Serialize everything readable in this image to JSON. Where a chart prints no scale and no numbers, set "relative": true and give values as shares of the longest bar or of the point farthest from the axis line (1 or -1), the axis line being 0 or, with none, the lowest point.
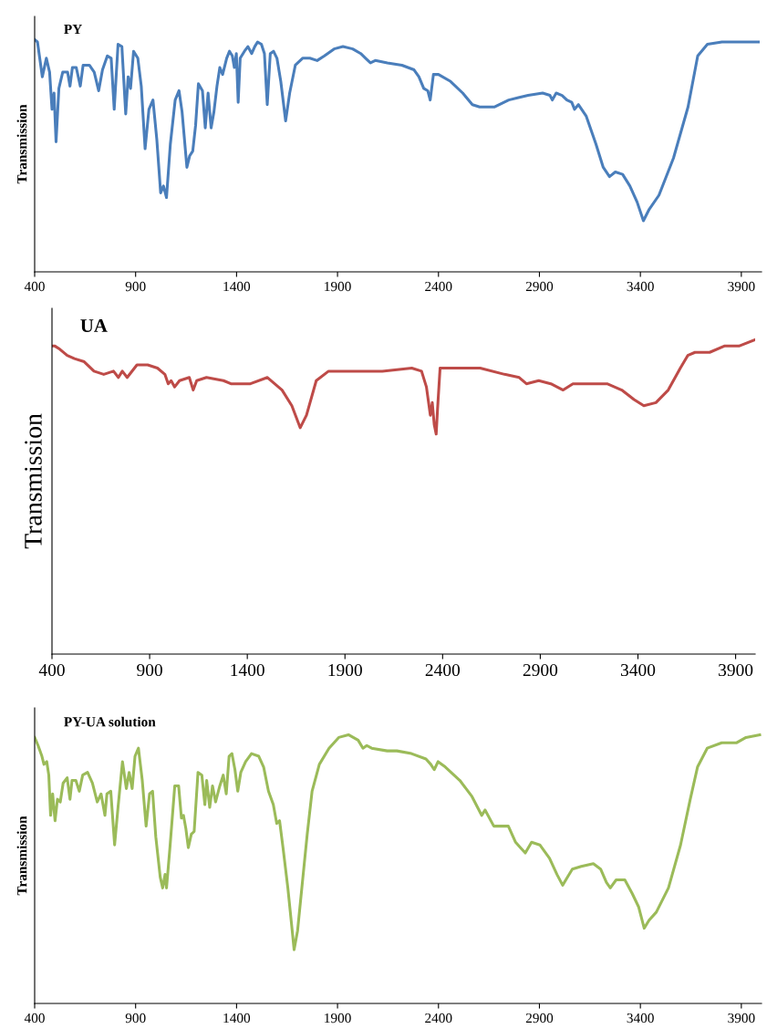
{
  "chart_data": [
    {
      "type": "line",
      "title": "PY",
      "ylabel": "Transmission",
      "relative": true,
      "xlim": [
        400,
        4000
      ],
      "xticks": [
        400,
        900,
        1400,
        1900,
        2400,
        2900,
        3400,
        3900
      ],
      "tick_labels": "x",
      "grid": false,
      "legend": false,
      "series": [
        {
          "color": "#4a7ebb",
          "x": [
            400,
            414,
            438,
            458,
            474,
            486,
            496,
            506,
            520,
            539,
            563,
            575,
            587,
            606,
            626,
            640,
            671,
            695,
            717,
            736,
            760,
            779,
            794,
            813,
            832,
            851,
            863,
            875,
            890,
            911,
            928,
            947,
            966,
            986,
            1005,
            1024,
            1038,
            1053,
            1072,
            1096,
            1115,
            1130,
            1154,
            1168,
            1183,
            1197,
            1211,
            1231,
            1245,
            1259,
            1274,
            1288,
            1303,
            1317,
            1331,
            1351,
            1365,
            1379,
            1389,
            1399,
            1408,
            1418,
            1439,
            1456,
            1475,
            1490,
            1504,
            1523,
            1538,
            1552,
            1567,
            1583,
            1600,
            1619,
            1643,
            1663,
            1691,
            1727,
            1763,
            1799,
            1835,
            1883,
            1927,
            1975,
            2015,
            2039,
            2063,
            2087,
            2147,
            2219,
            2279,
            2303,
            2327,
            2347,
            2359,
            2375,
            2400,
            2460,
            2520,
            2568,
            2604,
            2676,
            2748,
            2796,
            2844,
            2916,
            2952,
            2964,
            2983,
            3012,
            3036,
            3060,
            3074,
            3093,
            3132,
            3180,
            3216,
            3247,
            3276,
            3312,
            3348,
            3384,
            3415,
            3444,
            3492,
            3564,
            3636,
            3684,
            3732,
            3804,
            3900,
            3984
          ],
          "values": [
            1.0,
            0.99,
            0.84,
            0.92,
            0.86,
            0.7,
            0.77,
            0.56,
            0.79,
            0.86,
            0.86,
            0.8,
            0.88,
            0.88,
            0.8,
            0.89,
            0.89,
            0.86,
            0.78,
            0.87,
            0.93,
            0.92,
            0.7,
            0.98,
            0.97,
            0.68,
            0.84,
            0.79,
            0.95,
            0.92,
            0.8,
            0.53,
            0.7,
            0.74,
            0.57,
            0.34,
            0.37,
            0.32,
            0.55,
            0.74,
            0.78,
            0.69,
            0.45,
            0.5,
            0.52,
            0.63,
            0.81,
            0.78,
            0.62,
            0.77,
            0.62,
            0.69,
            0.8,
            0.88,
            0.85,
            0.92,
            0.95,
            0.93,
            0.88,
            0.94,
            0.73,
            0.92,
            0.95,
            0.97,
            0.94,
            0.97,
            0.99,
            0.98,
            0.94,
            0.72,
            0.94,
            0.95,
            0.92,
            0.82,
            0.65,
            0.77,
            0.89,
            0.92,
            0.92,
            0.91,
            0.93,
            0.96,
            0.97,
            0.96,
            0.94,
            0.92,
            0.9,
            0.91,
            0.9,
            0.89,
            0.87,
            0.84,
            0.79,
            0.78,
            0.74,
            0.85,
            0.85,
            0.82,
            0.77,
            0.72,
            0.71,
            0.71,
            0.74,
            0.75,
            0.76,
            0.77,
            0.76,
            0.74,
            0.77,
            0.76,
            0.74,
            0.73,
            0.7,
            0.72,
            0.67,
            0.55,
            0.45,
            0.41,
            0.43,
            0.42,
            0.37,
            0.3,
            0.22,
            0.27,
            0.33,
            0.49,
            0.71,
            0.93,
            0.98,
            0.99,
            0.99,
            0.99
          ]
        }
      ]
    },
    {
      "type": "line",
      "title": "UA",
      "ylabel": "Transmission",
      "relative": true,
      "xlim": [
        400,
        4000
      ],
      "xticks": [
        400,
        900,
        1400,
        1900,
        2400,
        2900,
        3400,
        3900
      ],
      "tick_labels": "x",
      "grid": false,
      "legend": false,
      "series": [
        {
          "color": "#be4b48",
          "x": [
            400,
            415,
            440,
            478,
            515,
            565,
            615,
            665,
            715,
            740,
            760,
            785,
            835,
            890,
            940,
            978,
            995,
            1010,
            1028,
            1053,
            1103,
            1123,
            1141,
            1191,
            1278,
            1316,
            1416,
            1503,
            1578,
            1628,
            1671,
            1703,
            1753,
            1816,
            1941,
            2091,
            2242,
            2292,
            2317,
            2337,
            2347,
            2357,
            2367,
            2374,
            2387,
            2467,
            2592,
            2717,
            2792,
            2829,
            2892,
            2954,
            3017,
            3067,
            3242,
            3317,
            3380,
            3430,
            3492,
            3555,
            3617,
            3655,
            3692,
            3767,
            3842,
            3917,
            4000
          ],
          "values": [
            0.98,
            0.98,
            0.97,
            0.95,
            0.94,
            0.93,
            0.9,
            0.89,
            0.9,
            0.88,
            0.9,
            0.88,
            0.92,
            0.92,
            0.91,
            0.89,
            0.86,
            0.87,
            0.85,
            0.87,
            0.88,
            0.84,
            0.87,
            0.88,
            0.87,
            0.86,
            0.86,
            0.88,
            0.84,
            0.79,
            0.72,
            0.76,
            0.87,
            0.9,
            0.9,
            0.9,
            0.91,
            0.9,
            0.85,
            0.76,
            0.8,
            0.73,
            0.7,
            0.78,
            0.91,
            0.91,
            0.91,
            0.89,
            0.88,
            0.86,
            0.87,
            0.86,
            0.84,
            0.86,
            0.86,
            0.84,
            0.81,
            0.79,
            0.8,
            0.84,
            0.91,
            0.95,
            0.96,
            0.96,
            0.98,
            0.98,
            1.0
          ]
        }
      ]
    },
    {
      "type": "line",
      "title": "PY-UA solution",
      "ylabel": "Transmission",
      "relative": true,
      "xlim": [
        400,
        4000
      ],
      "xticks": [
        400,
        900,
        1400,
        1900,
        2400,
        2900,
        3400,
        3900
      ],
      "tick_labels": "x",
      "grid": false,
      "legend": false,
      "series": [
        {
          "color": "#9bbb59",
          "x": [
            400,
            417,
            436,
            446,
            460,
            470,
            479,
            489,
            501,
            513,
            527,
            541,
            561,
            575,
            585,
            604,
            621,
            638,
            662,
            686,
            710,
            729,
            748,
            758,
            777,
            796,
            813,
            835,
            854,
            868,
            883,
            897,
            914,
            933,
            952,
            969,
            984,
            1000,
            1022,
            1034,
            1046,
            1053,
            1070,
            1094,
            1113,
            1127,
            1137,
            1149,
            1161,
            1176,
            1190,
            1209,
            1228,
            1243,
            1252,
            1267,
            1281,
            1296,
            1317,
            1334,
            1349,
            1363,
            1377,
            1392,
            1406,
            1421,
            1445,
            1474,
            1510,
            1534,
            1558,
            1582,
            1599,
            1613,
            1630,
            1654,
            1673,
            1685,
            1702,
            1726,
            1750,
            1774,
            1810,
            1858,
            1906,
            1954,
            2002,
            2026,
            2045,
            2069,
            2146,
            2194,
            2266,
            2338,
            2362,
            2379,
            2398,
            2434,
            2506,
            2566,
            2614,
            2631,
            2674,
            2722,
            2746,
            2782,
            2806,
            2830,
            2861,
            2902,
            2950,
            2987,
            3015,
            3039,
            3063,
            3107,
            3167,
            3203,
            3232,
            3251,
            3280,
            3323,
            3359,
            3391,
            3419,
            3443,
            3479,
            3539,
            3599,
            3647,
            3683,
            3731,
            3803,
            3875,
            3923,
            3991
          ],
          "values": [
            0.99,
            0.96,
            0.92,
            0.89,
            0.9,
            0.85,
            0.7,
            0.78,
            0.68,
            0.76,
            0.75,
            0.82,
            0.84,
            0.76,
            0.83,
            0.83,
            0.79,
            0.85,
            0.86,
            0.82,
            0.75,
            0.78,
            0.7,
            0.78,
            0.79,
            0.59,
            0.73,
            0.9,
            0.8,
            0.86,
            0.8,
            0.92,
            0.95,
            0.83,
            0.66,
            0.78,
            0.79,
            0.62,
            0.47,
            0.43,
            0.48,
            0.43,
            0.58,
            0.81,
            0.81,
            0.69,
            0.7,
            0.65,
            0.58,
            0.63,
            0.64,
            0.86,
            0.85,
            0.74,
            0.83,
            0.73,
            0.81,
            0.75,
            0.81,
            0.85,
            0.78,
            0.92,
            0.93,
            0.87,
            0.79,
            0.86,
            0.9,
            0.93,
            0.92,
            0.88,
            0.79,
            0.74,
            0.67,
            0.68,
            0.58,
            0.43,
            0.29,
            0.2,
            0.27,
            0.45,
            0.63,
            0.79,
            0.89,
            0.95,
            0.99,
            1.0,
            0.98,
            0.95,
            0.96,
            0.95,
            0.94,
            0.94,
            0.93,
            0.91,
            0.89,
            0.87,
            0.9,
            0.88,
            0.83,
            0.77,
            0.7,
            0.72,
            0.66,
            0.66,
            0.66,
            0.6,
            0.58,
            0.56,
            0.6,
            0.59,
            0.54,
            0.48,
            0.44,
            0.47,
            0.5,
            0.51,
            0.52,
            0.5,
            0.45,
            0.43,
            0.46,
            0.46,
            0.41,
            0.36,
            0.28,
            0.31,
            0.34,
            0.43,
            0.59,
            0.76,
            0.88,
            0.95,
            0.97,
            0.97,
            0.99,
            1.0
          ]
        }
      ]
    }
  ]
}
